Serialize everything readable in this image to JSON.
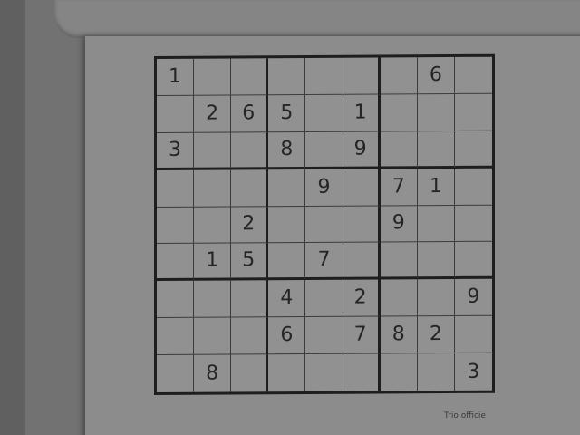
{
  "puzzle": {
    "grid": [
      [
        "1",
        "",
        "",
        "",
        "",
        "",
        "",
        "6",
        ""
      ],
      [
        "",
        "2",
        "6",
        "5",
        "",
        "1",
        "",
        "",
        ""
      ],
      [
        "3",
        "",
        "",
        "8",
        "",
        "9",
        "",
        "",
        ""
      ],
      [
        "",
        "",
        "",
        "",
        "9",
        "",
        "7",
        "1",
        ""
      ],
      [
        "",
        "",
        "2",
        "",
        "",
        "",
        "9",
        "",
        ""
      ],
      [
        "",
        "1",
        "5",
        "",
        "7",
        "",
        "",
        "",
        ""
      ],
      [
        "",
        "",
        "",
        "4",
        "",
        "2",
        "",
        "",
        "9"
      ],
      [
        "",
        "",
        "",
        "6",
        "",
        "7",
        "8",
        "2",
        ""
      ],
      [
        "",
        "8",
        "",
        "",
        "",
        "",
        "",
        "",
        "3"
      ]
    ]
  },
  "footer": {
    "source_note": "Trio officie"
  }
}
